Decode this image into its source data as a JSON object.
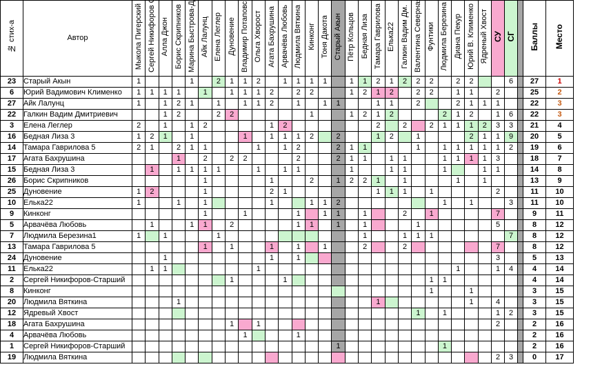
{
  "colors": {
    "pink": "#f9a9cf",
    "green": "#ccf5cf",
    "gray": "#a6a6a6",
    "place_gold": "#cc0000",
    "place_orange": "#c55a11"
  },
  "header": {
    "num_label": "№ стих-а",
    "author_label": "Автор",
    "judges": [
      "Мыкола Пигерский",
      "Сергей Никифоров С.",
      "Алла Джон",
      "Борис Скрипников",
      "Марина Быстрова-Д.",
      "Айк Лалунц",
      "Елена Леглер",
      "Дуновение",
      "Владимир Потаповск",
      "Ольга Хворост",
      "Агата Бахрушина",
      "Арвачёва Любовь",
      "Людмила Вяткина",
      "Кинконг",
      "Тоня Дакота",
      "Старый Акын",
      "Пётр Кольцов",
      "Бедная Лиза",
      "Тамара Гаврилова",
      "Елька22",
      "Галкин Вадим Дм.",
      "Валентина Северная",
      "Фунтики",
      "Людмила Березина",
      "Диана Пекур",
      "Юрий В. Клименко",
      "Ядреный Хвост"
    ],
    "su_label": "СУ",
    "sg_label": "СГ",
    "points_label": "Баллы",
    "place_label": "Место"
  },
  "rows": [
    {
      "num": "23",
      "author": "Старый Акын",
      "v": [
        "1",
        "",
        "",
        "",
        "1",
        "",
        "2",
        "1",
        "1",
        "2",
        "",
        "1",
        "1",
        "1",
        "1",
        "",
        "1",
        "1",
        "2",
        "1",
        "2",
        "2",
        "2",
        "",
        "2",
        "2",
        ""
      ],
      "su": "",
      "sg": "6",
      "pts": "27",
      "place": "1"
    },
    {
      "num": "6",
      "author": "Юрий Вадимович Клименко",
      "v": [
        "1",
        "1",
        "1",
        "1",
        "",
        "1",
        "",
        "1",
        "1",
        "1",
        "2",
        "",
        "2",
        "2",
        "",
        "",
        "1",
        "2",
        "1",
        "2",
        "",
        "2",
        "2",
        "",
        "1",
        "1",
        ""
      ],
      "su": "2",
      "sg": "",
      "pts": "25",
      "place": "2"
    },
    {
      "num": "27",
      "author": "Айк Лалунц",
      "v": [
        "1",
        "",
        "1",
        "2",
        "1",
        "",
        "1",
        "",
        "1",
        "1",
        "2",
        "",
        "1",
        "",
        "1",
        "1",
        "",
        "",
        "1",
        "1",
        "",
        "2",
        "",
        "",
        "2",
        "1",
        "1"
      ],
      "su": "1",
      "sg": "",
      "pts": "22",
      "place": "3"
    },
    {
      "num": "22",
      "author": "Галкин Вадим Дмитриевич",
      "v": [
        "",
        "",
        "1",
        "2",
        "",
        "",
        "2",
        "2",
        "",
        "",
        "",
        "",
        "",
        "1",
        "",
        "",
        "1",
        "2",
        "1",
        "2",
        "",
        "",
        "",
        "2",
        "1",
        "2",
        ""
      ],
      "su": "1",
      "sg": "6",
      "pts": "22",
      "place": "3"
    },
    {
      "num": "3",
      "author": "Елена Леглер",
      "v": [
        "2",
        "",
        "1",
        "",
        "1",
        "2",
        "",
        "",
        "",
        "",
        "1",
        "2",
        "",
        "",
        "",
        "",
        "",
        "",
        "2",
        "",
        "2",
        "",
        "2",
        "1",
        "1",
        "1",
        "2"
      ],
      "su": "3",
      "sg": "3",
      "pts": "21",
      "place": "4"
    },
    {
      "num": "16",
      "author": "Бедная Лиза 3",
      "v": [
        "1",
        "2",
        "1",
        "",
        "1",
        "",
        "",
        "",
        "1",
        "",
        "1",
        "1",
        "1",
        "2",
        "",
        "2",
        "",
        "",
        "1",
        "2",
        "",
        "1",
        "",
        "",
        "",
        "2",
        "1"
      ],
      "su": "1",
      "sg": "9",
      "pts": "20",
      "place": "5"
    },
    {
      "num": "14",
      "author": "Тамара Гаврилова 5",
      "v": [
        "2",
        "1",
        "",
        "2",
        "1",
        "1",
        "",
        "",
        "",
        "1",
        "",
        "1",
        "2",
        "",
        "",
        "2",
        "1",
        "1",
        "",
        "",
        "",
        "1",
        "",
        "1",
        "1",
        "1",
        "1"
      ],
      "su": "1",
      "sg": "2",
      "pts": "19",
      "place": "6"
    },
    {
      "num": "17",
      "author": "Агата Бахрушина",
      "v": [
        "",
        "",
        "",
        "1",
        "",
        "2",
        "",
        "2",
        "2",
        "",
        "",
        "",
        "2",
        "",
        "",
        "2",
        "1",
        "1",
        "",
        "1",
        "1",
        "",
        "",
        "1",
        "1",
        "1",
        "1"
      ],
      "su": "3",
      "sg": "",
      "pts": "18",
      "place": "7"
    },
    {
      "num": "15",
      "author": "Бедная Лиза 3",
      "v": [
        "",
        "1",
        "",
        "1",
        "1",
        "1",
        "1",
        "",
        "",
        "1",
        "",
        "1",
        "1",
        "",
        "",
        "",
        "1",
        "",
        "",
        "1",
        "1",
        "",
        "",
        "1",
        "",
        "",
        "1"
      ],
      "su": "1",
      "sg": "",
      "pts": "14",
      "place": "8"
    },
    {
      "num": "26",
      "author": "Борис Скрипников",
      "v": [
        "",
        "",
        "",
        "",
        "",
        "1",
        "",
        "",
        "",
        "",
        "1",
        "",
        "",
        "2",
        "",
        "1",
        "2",
        "2",
        "1",
        "",
        "1",
        "",
        "",
        "",
        "1",
        "",
        "1"
      ],
      "su": "",
      "sg": "",
      "pts": "13",
      "place": "9"
    },
    {
      "num": "25",
      "author": "Дуновение",
      "v": [
        "1",
        "2",
        "",
        "",
        "",
        "1",
        "",
        "",
        "",
        "",
        "2",
        "1",
        "",
        "",
        "",
        "",
        "",
        "",
        "1",
        "1",
        "1",
        "",
        "1",
        "",
        "",
        "",
        ""
      ],
      "su": "2",
      "sg": "",
      "pts": "11",
      "place": "10"
    },
    {
      "num": "10",
      "author": "Елька22",
      "v": [
        "1",
        "",
        "",
        "1",
        "",
        "1",
        "",
        "",
        "",
        "",
        "1",
        "",
        "",
        "1",
        "1",
        "2",
        "",
        "",
        "",
        "",
        "",
        "",
        "",
        "1",
        "",
        "1",
        ""
      ],
      "su": "",
      "sg": "3",
      "pts": "11",
      "place": "10"
    },
    {
      "num": "9",
      "author": "Кинконг",
      "v": [
        "",
        "",
        "",
        "",
        "",
        "1",
        "",
        "",
        "1",
        "",
        "",
        "",
        "1",
        "",
        "1",
        "1",
        "",
        "1",
        "",
        "",
        "2",
        "",
        "1",
        "",
        "",
        "",
        ""
      ],
      "su": "7",
      "sg": "",
      "pts": "9",
      "place": "11"
    },
    {
      "num": "5",
      "author": "Арвачёва Любовь",
      "v": [
        "",
        "1",
        "",
        "",
        "1",
        "1",
        "",
        "2",
        "",
        "",
        "",
        "",
        "1",
        "1",
        "",
        "1",
        "",
        "1",
        "",
        "",
        "",
        "1",
        "",
        "",
        "",
        "",
        ""
      ],
      "su": "5",
      "sg": "",
      "pts": "8",
      "place": "12"
    },
    {
      "num": "7",
      "author": "Людмила Березина1",
      "v": [
        "1",
        "",
        "1",
        "",
        "",
        "",
        "1",
        "",
        "",
        "",
        "",
        "",
        "",
        "",
        "",
        "",
        "",
        "1",
        "",
        "",
        "1",
        "1",
        "1",
        "",
        "",
        "",
        ""
      ],
      "su": "",
      "sg": "7",
      "pts": "8",
      "place": "12"
    },
    {
      "num": "13",
      "author": "Тамара Гаврилова 5",
      "v": [
        "",
        "",
        "",
        "",
        "",
        "1",
        "",
        "1",
        "",
        "",
        "1",
        "",
        "1",
        "",
        "1",
        "",
        "",
        "2",
        "",
        "",
        "2",
        "",
        "",
        "",
        "",
        "",
        ""
      ],
      "su": "7",
      "sg": "",
      "pts": "8",
      "place": "12"
    },
    {
      "num": "24",
      "author": "Дуновение",
      "v": [
        "",
        "",
        "1",
        "",
        "",
        "",
        "",
        "",
        "",
        "",
        "1",
        "",
        "1",
        "",
        "",
        "",
        "",
        "",
        "",
        "",
        "",
        "",
        "",
        "",
        "",
        "",
        ""
      ],
      "su": "3",
      "sg": "",
      "pts": "5",
      "place": "13"
    },
    {
      "num": "11",
      "author": "Елька22",
      "v": [
        "",
        "1",
        "1",
        "",
        "",
        "",
        "",
        "",
        "",
        "1",
        "",
        "",
        "",
        "",
        "",
        "",
        "",
        "",
        "",
        "",
        "",
        "",
        "",
        "",
        "1",
        "",
        ""
      ],
      "su": "1",
      "sg": "4",
      "pts": "4",
      "place": "14"
    },
    {
      "num": "2",
      "author": "Сергей Никифоров-Старший",
      "v": [
        "",
        "",
        "",
        "",
        "",
        "",
        "",
        "1",
        "",
        "",
        "",
        "1",
        "",
        "",
        "",
        "",
        "",
        "",
        "",
        "",
        "",
        "",
        "1",
        "1",
        "",
        "",
        ""
      ],
      "su": "",
      "sg": "",
      "pts": "4",
      "place": "14"
    },
    {
      "num": "8",
      "author": "Кинконг",
      "v": [
        "",
        "",
        "",
        "",
        "",
        "",
        "",
        "",
        "",
        "",
        "",
        "",
        "",
        "",
        "",
        "",
        "",
        "",
        "",
        "",
        "",
        "",
        "1",
        "",
        "",
        "1",
        ""
      ],
      "su": "",
      "sg": "",
      "pts": "3",
      "place": "15"
    },
    {
      "num": "20",
      "author": "Людмила Вяткина",
      "v": [
        "",
        "",
        "",
        "1",
        "",
        "",
        "",
        "",
        "",
        "",
        "",
        "",
        "",
        "",
        "",
        "",
        "",
        "",
        "1",
        "",
        "",
        "",
        "",
        "",
        "",
        "1",
        ""
      ],
      "su": "4",
      "sg": "",
      "pts": "3",
      "place": "15"
    },
    {
      "num": "12",
      "author": "Ядревый Хвост",
      "v": [
        "",
        "",
        "",
        "",
        "",
        "",
        "",
        "",
        "",
        "",
        "",
        "",
        "",
        "",
        "",
        "",
        "",
        "",
        "",
        "",
        "",
        "1",
        "",
        "1",
        "",
        "",
        ""
      ],
      "su": "1",
      "sg": "2",
      "pts": "3",
      "place": "15"
    },
    {
      "num": "18",
      "author": "Агата Бахрушина",
      "v": [
        "",
        "",
        "",
        "",
        "",
        "",
        "",
        "1",
        "",
        "1",
        "",
        "",
        "",
        "",
        "",
        "",
        "",
        "",
        "",
        "",
        "",
        "",
        "",
        "",
        "",
        "",
        ""
      ],
      "su": "2",
      "sg": "",
      "pts": "2",
      "place": "16"
    },
    {
      "num": "4",
      "author": "Арвачёва Любовь",
      "v": [
        "",
        "",
        "",
        "",
        "",
        "",
        "",
        "",
        "1",
        "",
        "",
        "",
        "1",
        "",
        "",
        "",
        "",
        "",
        "",
        "",
        "",
        "",
        "",
        "",
        "",
        "",
        ""
      ],
      "su": "",
      "sg": "",
      "pts": "2",
      "place": "16"
    },
    {
      "num": "1",
      "author": "Сергей Никифоров-Старший",
      "v": [
        "",
        "",
        "",
        "",
        "",
        "",
        "",
        "",
        "",
        "",
        "",
        "",
        "",
        "",
        "",
        "1",
        "",
        "",
        "",
        "",
        "",
        "",
        "",
        "1",
        "",
        "",
        ""
      ],
      "su": "",
      "sg": "",
      "pts": "2",
      "place": "16"
    },
    {
      "num": "19",
      "author": "Людмила Вяткина",
      "v": [
        "",
        "",
        "",
        "",
        "",
        "",
        "",
        "",
        "",
        "",
        "",
        "",
        "",
        "",
        "",
        "",
        "",
        "",
        "",
        "",
        "",
        "",
        "",
        "",
        "",
        "",
        ""
      ],
      "su": "2",
      "sg": "3",
      "pts": "0",
      "place": "17"
    }
  ],
  "highlights": {
    "pink": [
      [
        "6",
        "18"
      ],
      [
        "6",
        "19"
      ],
      [
        "22",
        "7"
      ],
      [
        "3",
        "11"
      ],
      [
        "3",
        "21"
      ],
      [
        "16",
        "8"
      ],
      [
        "17",
        "3"
      ],
      [
        "17",
        "25"
      ],
      [
        "15",
        "1"
      ],
      [
        "25",
        "1"
      ],
      [
        "9",
        "13"
      ],
      [
        "9",
        "18"
      ],
      [
        "9",
        "22"
      ],
      [
        "5",
        "5"
      ],
      [
        "5",
        "13"
      ],
      [
        "5",
        "18"
      ],
      [
        "13",
        "5"
      ],
      [
        "13",
        "10"
      ],
      [
        "13",
        "13"
      ],
      [
        "13",
        "18"
      ],
      [
        "13",
        "21"
      ],
      [
        "13",
        "25"
      ],
      [
        "24",
        "14"
      ],
      [
        "20",
        "18"
      ],
      [
        "18",
        "8"
      ],
      [
        "18",
        "12"
      ],
      [
        "19",
        "10"
      ],
      [
        "19",
        "15"
      ],
      [
        "19",
        "25"
      ]
    ],
    "green": [
      [
        "23",
        "6"
      ],
      [
        "23",
        "17"
      ],
      [
        "23",
        "20"
      ],
      [
        "23",
        "26"
      ],
      [
        "27",
        "22"
      ],
      [
        "22",
        "19"
      ],
      [
        "22",
        "23"
      ],
      [
        "3",
        "19"
      ],
      [
        "3",
        "25"
      ],
      [
        "3",
        "26"
      ],
      [
        "16",
        "2"
      ],
      [
        "16",
        "14"
      ],
      [
        "16",
        "18"
      ],
      [
        "16",
        "20"
      ],
      [
        "16",
        "25"
      ],
      [
        "14",
        "17"
      ],
      [
        "15",
        "24"
      ],
      [
        "26",
        "18"
      ],
      [
        "10",
        "6"
      ],
      [
        "10",
        "12"
      ],
      [
        "10",
        "21"
      ],
      [
        "7",
        "1"
      ],
      [
        "7",
        "11"
      ],
      [
        "7",
        "12"
      ],
      [
        "7",
        "13"
      ],
      [
        "24",
        "13"
      ],
      [
        "11",
        "3"
      ],
      [
        "2",
        "6"
      ],
      [
        "2",
        "12"
      ],
      [
        "8",
        "15"
      ],
      [
        "20",
        "19"
      ],
      [
        "12",
        "3"
      ],
      [
        "12",
        "21"
      ],
      [
        "4",
        "9"
      ],
      [
        "1",
        "23"
      ],
      [
        "19",
        "3"
      ],
      [
        "19",
        "5"
      ],
      [
        "25",
        "19"
      ],
      [
        "6",
        "5"
      ]
    ]
  }
}
